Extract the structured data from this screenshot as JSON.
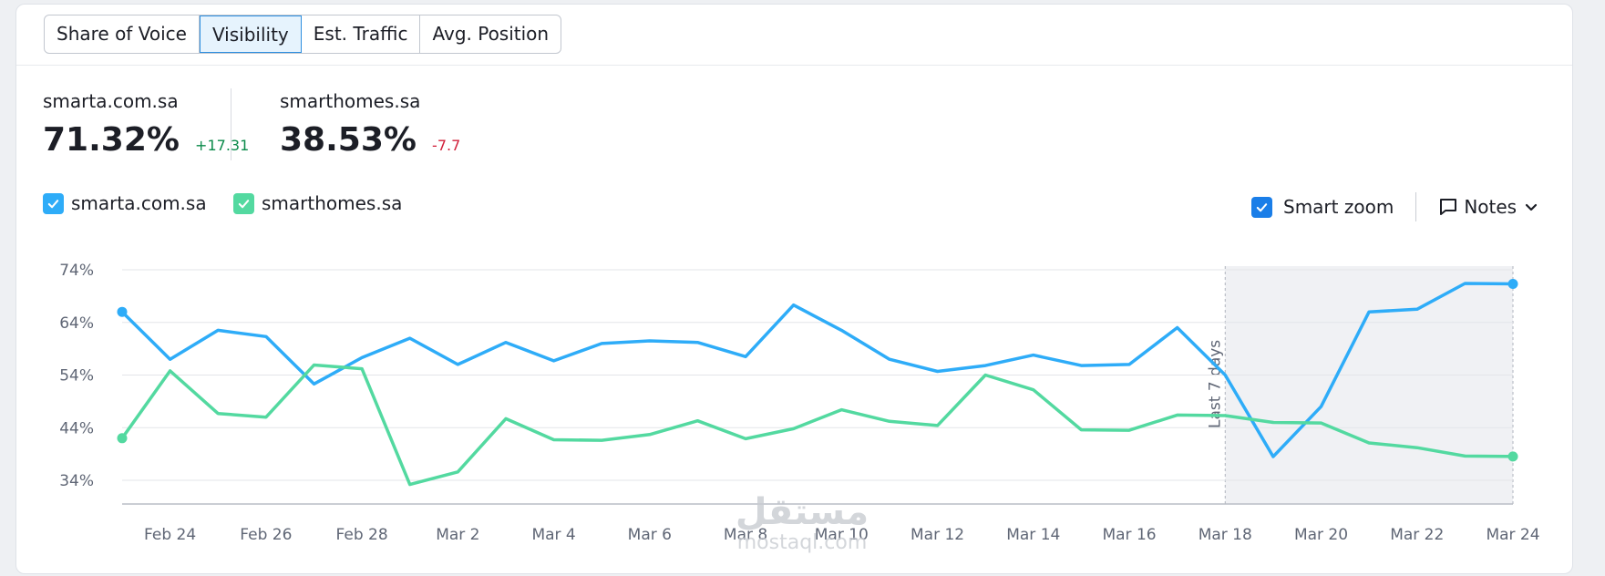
{
  "tabs": [
    "Share of Voice",
    "Visibility",
    "Est. Traffic",
    "Avg. Position"
  ],
  "active_tab": "Visibility",
  "metrics": [
    {
      "domain": "smarta.com.sa",
      "value": "71.32%",
      "delta": "+17.31"
    },
    {
      "domain": "smarthomes.sa",
      "value": "38.53%",
      "delta": "-7.7"
    }
  ],
  "legend": [
    {
      "label": "smarta.com.sa",
      "color": "#2eacf8"
    },
    {
      "label": "smarthomes.sa",
      "color": "#53d9a0"
    }
  ],
  "controls": {
    "smart_zoom": "Smart zoom",
    "notes": "Notes"
  },
  "watermark": {
    "ar": "مستقل",
    "en": "mostaql.com"
  },
  "chart_data": {
    "type": "line",
    "x": [
      "Feb 23",
      "Feb 24",
      "Feb 25",
      "Feb 26",
      "Feb 27",
      "Feb 28",
      "Mar 1",
      "Mar 2",
      "Mar 3",
      "Mar 4",
      "Mar 5",
      "Mar 6",
      "Mar 7",
      "Mar 8",
      "Mar 9",
      "Mar 10",
      "Mar 11",
      "Mar 12",
      "Mar 13",
      "Mar 14",
      "Mar 15",
      "Mar 16",
      "Mar 17",
      "Mar 18",
      "Mar 19",
      "Mar 20",
      "Mar 21",
      "Mar 22",
      "Mar 23",
      "Mar 24"
    ],
    "x_tick_labels": [
      "Feb 24",
      "Feb 26",
      "Feb 28",
      "Mar 2",
      "Mar 4",
      "Mar 6",
      "Mar 8",
      "Mar 10",
      "Mar 12",
      "Mar 14",
      "Mar 16",
      "Mar 18",
      "Mar 20",
      "Mar 22",
      "Mar 24"
    ],
    "y_ticks": [
      "74%",
      "64%",
      "54%",
      "44%",
      "34%"
    ],
    "ylim": [
      30,
      74
    ],
    "series": [
      {
        "name": "smarta.com.sa",
        "color": "#2eacf8",
        "values": [
          66.0,
          57.0,
          62.5,
          61.3,
          52.3,
          57.3,
          61.0,
          56.0,
          60.2,
          56.7,
          60.0,
          60.5,
          60.2,
          57.5,
          67.3,
          62.5,
          57.0,
          54.7,
          55.8,
          57.8,
          55.8,
          56.0,
          63.0,
          54.0,
          38.5,
          48.0,
          66.0,
          66.5,
          71.4,
          71.32
        ]
      },
      {
        "name": "smarthomes.sa",
        "color": "#53d9a0",
        "values": [
          42.0,
          54.8,
          46.7,
          46.0,
          55.9,
          55.2,
          33.2,
          35.6,
          45.7,
          41.7,
          41.6,
          42.7,
          45.3,
          41.9,
          43.8,
          47.4,
          45.2,
          44.4,
          54.0,
          51.2,
          43.6,
          43.5,
          46.4,
          46.3,
          45.0,
          44.9,
          41.1,
          40.2,
          38.6,
          38.53
        ]
      }
    ],
    "highlight_region": {
      "from": "Mar 18",
      "to": "Mar 24",
      "label": "Last 7 days"
    },
    "grid": true,
    "legend_position": "top-left"
  }
}
